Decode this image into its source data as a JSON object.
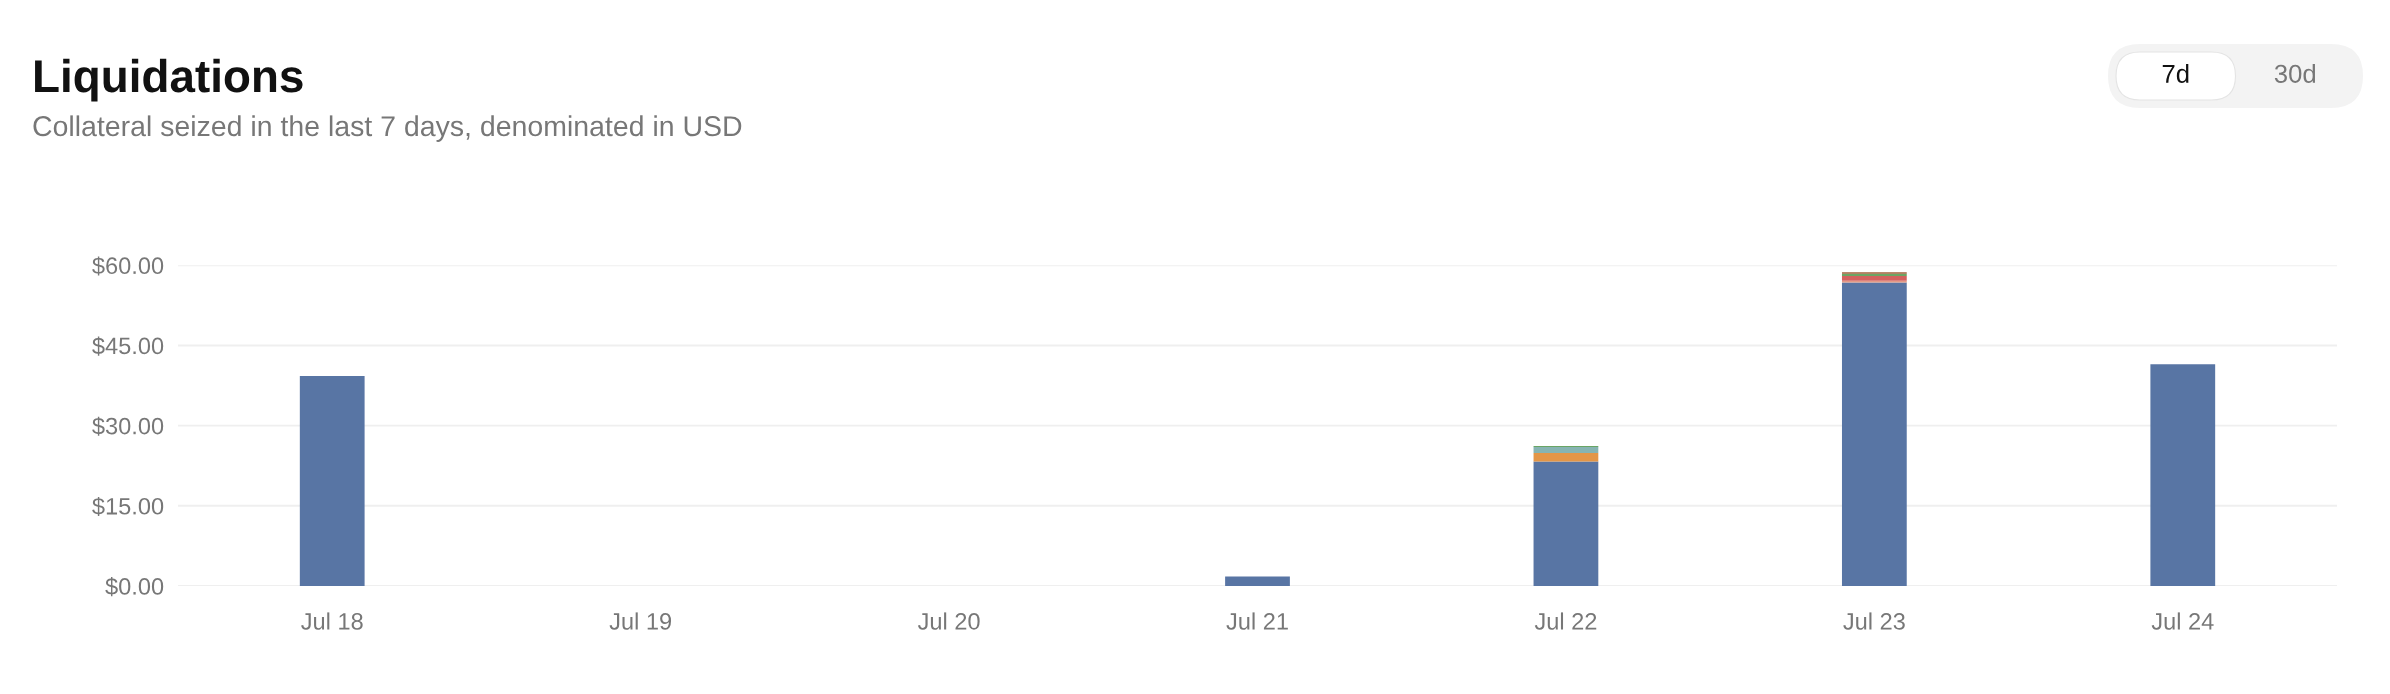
{
  "chart_data": {
    "type": "bar",
    "title": "Liquidations",
    "subtitle": "Collateral seized in the last 7 days, denominated in USD",
    "categories": [
      "Jul 18",
      "Jul 19",
      "Jul 20",
      "Jul 21",
      "Jul 22",
      "Jul 23",
      "Jul 24"
    ],
    "stacked": true,
    "series": [
      {
        "color": "#5875a4",
        "values": [
          39.3,
          0,
          0,
          1.8,
          23.3,
          56.8,
          41.5
        ]
      },
      {
        "color": "#e59a86",
        "values": [
          null,
          null,
          null,
          null,
          null,
          0.3,
          null
        ]
      },
      {
        "color": "#e39647",
        "values": [
          null,
          null,
          null,
          null,
          1.6,
          null,
          null
        ]
      },
      {
        "color": "#d3605e",
        "values": [
          null,
          null,
          null,
          null,
          null,
          0.9,
          null
        ]
      },
      {
        "color": "#86b4b2",
        "values": [
          null,
          null,
          null,
          null,
          1.1,
          null,
          null
        ]
      },
      {
        "color": "#6aa564",
        "values": [
          null,
          null,
          null,
          null,
          0.2,
          0.4,
          null
        ]
      },
      {
        "color": "#a0623c",
        "values": [
          null,
          null,
          null,
          null,
          null,
          0.3,
          null
        ]
      }
    ],
    "ylim": [
      0,
      60
    ],
    "yticks": [
      {
        "value": 0,
        "label": "$0.00"
      },
      {
        "value": 15,
        "label": "$15.00"
      },
      {
        "value": 30,
        "label": "$30.00"
      },
      {
        "value": 45,
        "label": "$45.00"
      },
      {
        "value": 60,
        "label": "$60.00"
      }
    ],
    "grid": "y",
    "annotations": [
      "7d",
      "30d"
    ]
  }
}
